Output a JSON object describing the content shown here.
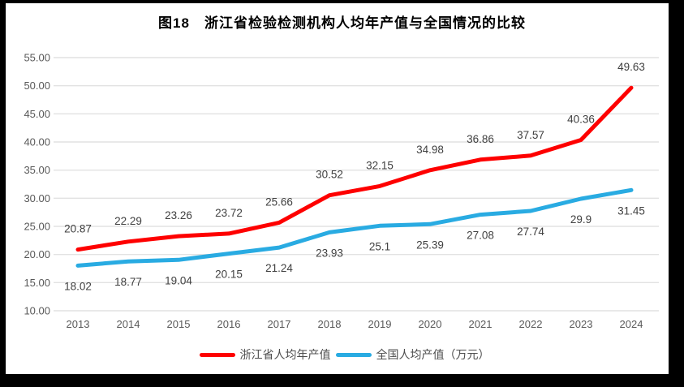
{
  "chart_data": {
    "type": "line",
    "title": "图18　浙江省检验检测机构人均年产值与全国情况的比较",
    "categories": [
      "2013",
      "2014",
      "2015",
      "2016",
      "2017",
      "2018",
      "2019",
      "2020",
      "2021",
      "2022",
      "2023",
      "2024"
    ],
    "series": [
      {
        "name": "浙江省人均年产值",
        "color": "#FE0000",
        "label_position": "above",
        "values": [
          20.87,
          22.29,
          23.26,
          23.72,
          25.66,
          30.52,
          32.15,
          34.98,
          36.86,
          37.57,
          40.36,
          49.63
        ]
      },
      {
        "name": "全国人均产值（万元）",
        "color": "#29ABE2",
        "label_position": "below",
        "values": [
          18.02,
          18.77,
          19.04,
          20.15,
          21.24,
          23.93,
          25.1,
          25.39,
          27.08,
          27.74,
          29.9,
          31.45
        ]
      }
    ],
    "xlabel": "",
    "ylabel": "",
    "ylim": [
      10,
      55
    ],
    "ytick_step": 5,
    "ytick_labels": [
      "10.00",
      "15.00",
      "20.00",
      "25.00",
      "30.00",
      "35.00",
      "40.00",
      "45.00",
      "50.00",
      "55.00"
    ],
    "grid": "horizontal",
    "gridline_color": "#E2E2E2",
    "axis_label_color": "#595959",
    "data_label_color": "#404040",
    "legend_position": "bottom",
    "frame_color": "#000000",
    "background_color": "#ffffff"
  }
}
